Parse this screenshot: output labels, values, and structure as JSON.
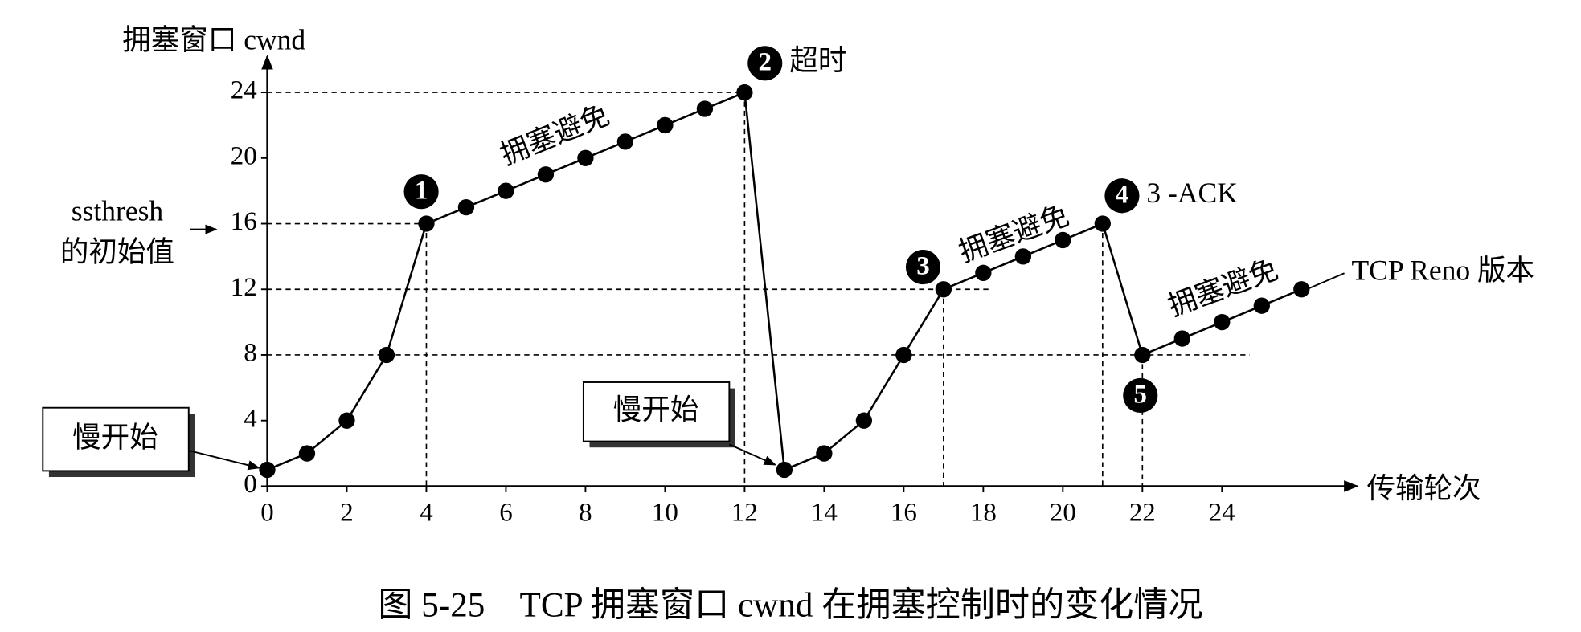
{
  "chart_data": {
    "type": "line",
    "title": "图 5-25　TCP 拥塞窗口 cwnd 在拥塞控制时的变化情况",
    "y_label": "拥塞窗口 cwnd",
    "x_label": "传输轮次",
    "x": [
      0,
      1,
      2,
      3,
      4,
      5,
      6,
      7,
      8,
      9,
      10,
      11,
      12,
      13,
      14,
      15,
      16,
      17,
      18,
      19,
      20,
      21,
      22,
      23,
      24,
      25,
      26
    ],
    "series": [
      {
        "name": "TCP Reno 版本",
        "color": "#000000",
        "values": [
          1,
          2,
          4,
          8,
          16,
          17,
          18,
          19,
          20,
          21,
          22,
          23,
          24,
          1,
          2,
          4,
          8,
          12,
          13,
          14,
          15,
          16,
          8,
          9,
          10,
          11,
          12
        ]
      }
    ],
    "xlim": [
      0,
      27.4
    ],
    "ylim": [
      0,
      26.2
    ],
    "xticks": [
      0,
      2,
      4,
      6,
      8,
      10,
      12,
      14,
      16,
      18,
      20,
      22,
      24
    ],
    "yticks": [
      0,
      4,
      8,
      12,
      16,
      20,
      24
    ],
    "ssthresh_label": [
      "ssthresh",
      "的初始值"
    ],
    "slow_start_labels": [
      "慢开始",
      "慢开始"
    ],
    "avoidance_labels": [
      "拥塞避免",
      "拥塞避免",
      "拥塞避免"
    ],
    "events": [
      {
        "marker": "1"
      },
      {
        "marker": "2",
        "label": "超时"
      },
      {
        "marker": "3"
      },
      {
        "marker": "4",
        "label": "3 -ACK"
      },
      {
        "marker": "5"
      }
    ]
  }
}
